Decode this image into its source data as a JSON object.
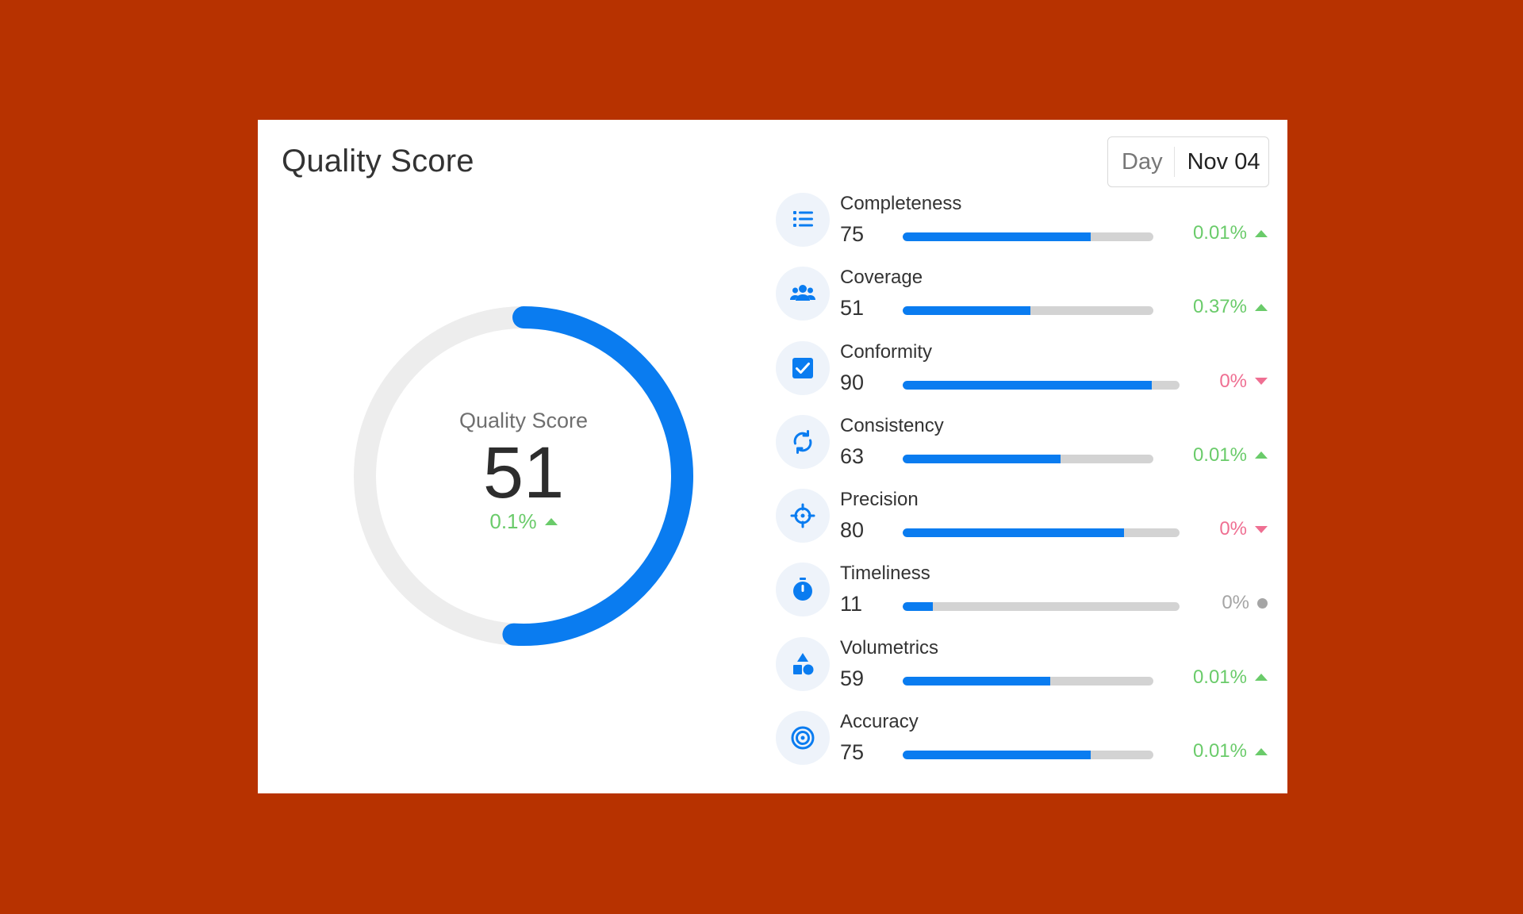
{
  "card": {
    "title": "Quality Score",
    "period_mode": "Day",
    "period_date": "Nov 04"
  },
  "gauge": {
    "label": "Quality Score",
    "value": "51",
    "score_fraction": 0.51,
    "delta": "0.1%",
    "trend": "up"
  },
  "colors": {
    "background": "#B73200",
    "accent": "#0A7CF0",
    "up": "#6ACB6A",
    "down": "#EF6F92",
    "neutral": "#A5A5A5"
  },
  "metrics": [
    {
      "name": "Completeness",
      "value": "75",
      "fraction": 0.75,
      "delta": "0.01%",
      "trend": "up",
      "icon": "list-icon"
    },
    {
      "name": "Coverage",
      "value": "51",
      "fraction": 0.51,
      "delta": "0.37%",
      "trend": "up",
      "icon": "group-icon"
    },
    {
      "name": "Conformity",
      "value": "90",
      "fraction": 0.9,
      "delta": "0%",
      "trend": "down",
      "icon": "checkbox-icon"
    },
    {
      "name": "Consistency",
      "value": "63",
      "fraction": 0.63,
      "delta": "0.01%",
      "trend": "up",
      "icon": "sync-icon"
    },
    {
      "name": "Precision",
      "value": "80",
      "fraction": 0.8,
      "delta": "0%",
      "trend": "down",
      "icon": "crosshair-icon"
    },
    {
      "name": "Timeliness",
      "value": "11",
      "fraction": 0.11,
      "delta": "0%",
      "trend": "flat",
      "icon": "stopwatch-icon"
    },
    {
      "name": "Volumetrics",
      "value": "59",
      "fraction": 0.59,
      "delta": "0.01%",
      "trend": "up",
      "icon": "shapes-icon"
    },
    {
      "name": "Accuracy",
      "value": "75",
      "fraction": 0.75,
      "delta": "0.01%",
      "trend": "up",
      "icon": "target-icon"
    }
  ]
}
